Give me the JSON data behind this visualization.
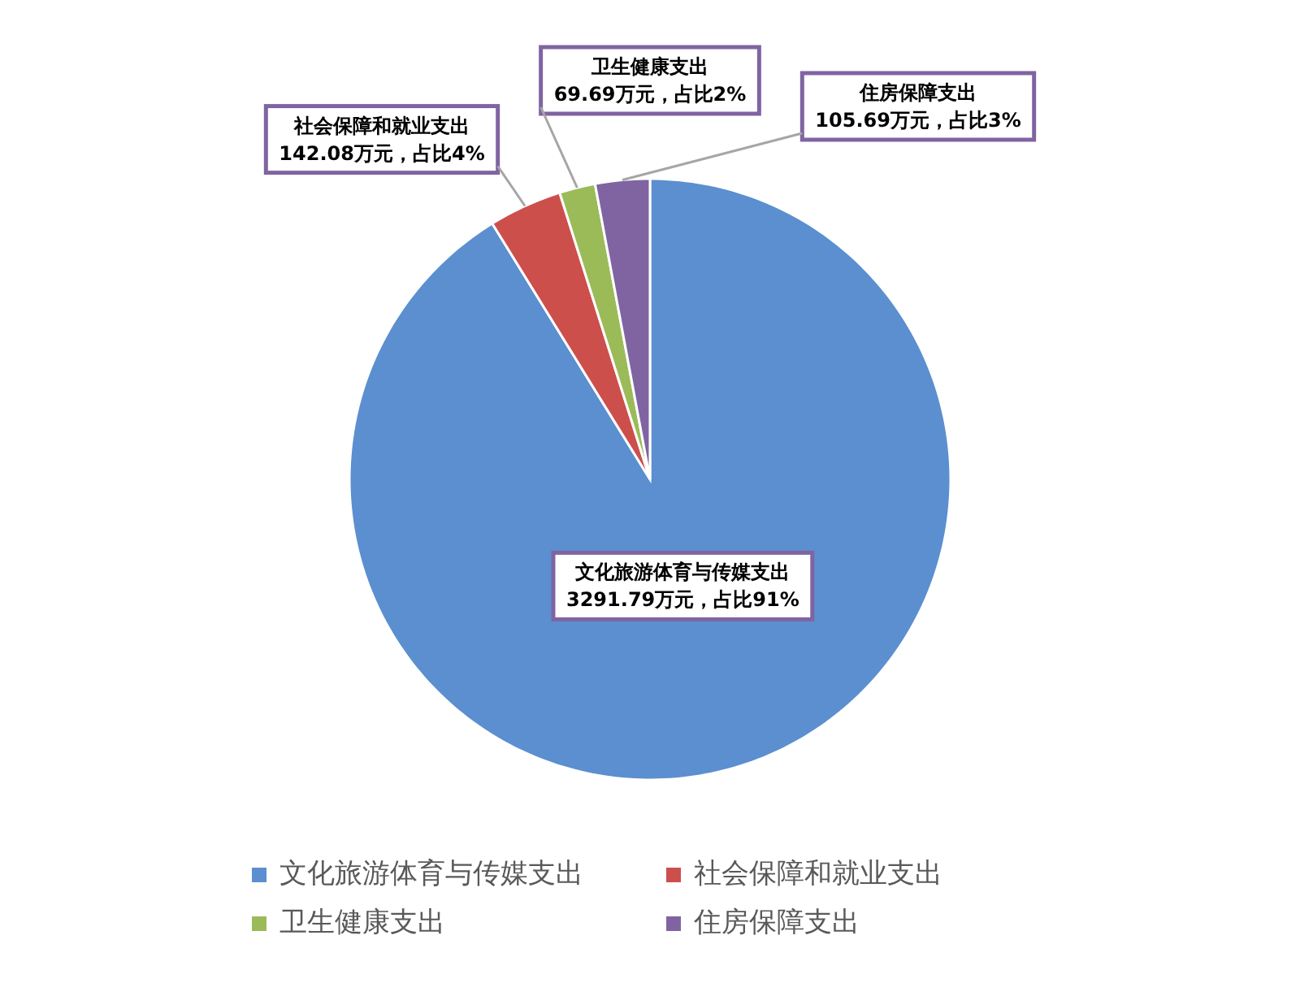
{
  "chart_data": {
    "type": "pie",
    "categories": [
      "文化旅游体育与传媒支出",
      "社会保障和就业支出",
      "卫生健康支出",
      "住房保障支出"
    ],
    "values": [
      3291.79,
      142.08,
      69.69,
      105.69
    ],
    "colors": [
      "#5b8fcf",
      "#cd4f4c",
      "#9bbb59",
      "#8064a2"
    ],
    "value_labels": [
      "3291.79万元，占比91%",
      "142.08万元，占比4%",
      "69.69万元，占比2%",
      "105.69万元，占比3%"
    ],
    "legend": "bottom"
  }
}
